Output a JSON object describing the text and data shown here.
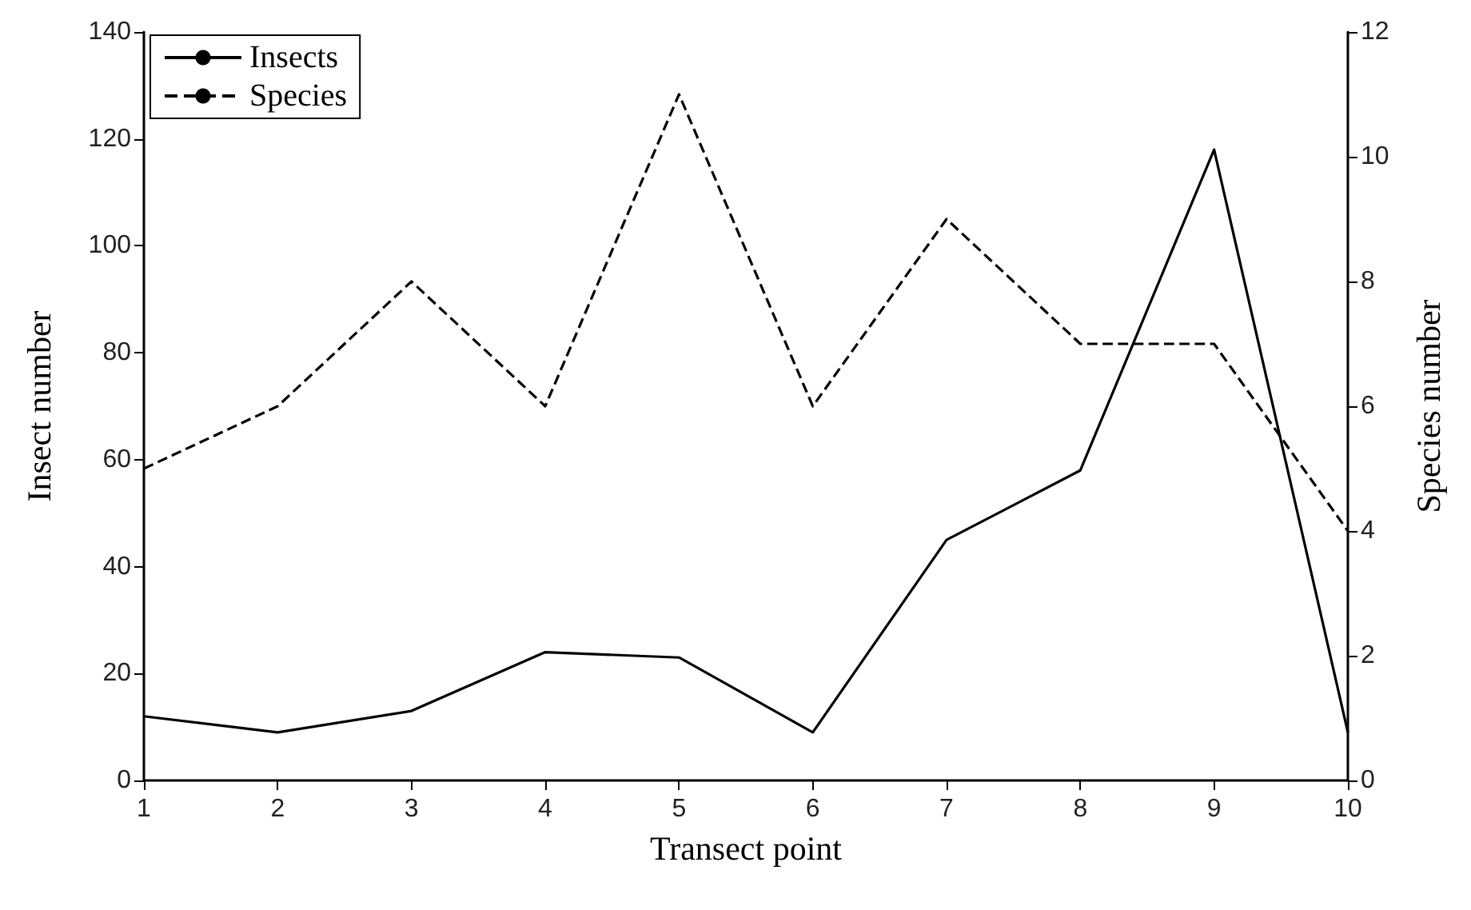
{
  "chart_data": {
    "type": "line",
    "xlabel": "Transect point",
    "ylabel": "Insect number",
    "y2label": "Species number",
    "x": [
      1,
      2,
      3,
      4,
      5,
      6,
      7,
      8,
      9,
      10
    ],
    "xlim": [
      1,
      10
    ],
    "xticks": [
      1,
      2,
      3,
      4,
      5,
      6,
      7,
      8,
      9,
      10
    ],
    "ylim": [
      0,
      140
    ],
    "yticks": [
      0,
      20,
      40,
      60,
      80,
      100,
      120,
      140
    ],
    "y2lim": [
      0,
      12
    ],
    "y2ticks": [
      0,
      2,
      4,
      6,
      8,
      10,
      12
    ],
    "series": [
      {
        "name": "Insects",
        "color": "#000000",
        "line_style": "solid",
        "values": [
          12,
          9,
          13,
          24,
          23,
          9,
          45,
          58,
          118,
          9
        ]
      },
      {
        "name": "Species",
        "color": "#000000",
        "line_style": "dashed",
        "axis": "y2",
        "values": [
          5,
          6,
          8,
          6,
          11,
          6,
          9,
          7,
          7,
          4
        ]
      }
    ],
    "legend": "top left",
    "grid": false,
    "marker": "none"
  }
}
